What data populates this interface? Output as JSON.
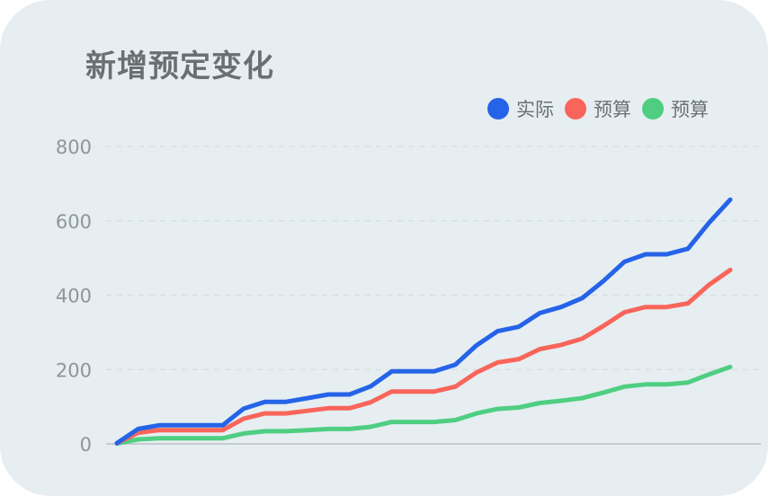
{
  "chart_data": {
    "type": "line",
    "title": "新增预定变化",
    "xlabel": "",
    "ylabel": "",
    "ylim": [
      0,
      800
    ],
    "yticks": [
      0,
      200,
      400,
      600,
      800
    ],
    "grid": true,
    "legend_position": "top-right",
    "x": [
      1,
      2,
      3,
      4,
      5,
      6,
      7,
      8,
      9,
      10,
      11,
      12,
      13,
      14,
      15,
      16,
      17,
      18,
      19,
      20,
      21,
      22,
      23,
      24,
      25,
      26,
      27,
      28,
      29,
      30
    ],
    "series": [
      {
        "name": "实际",
        "color": "#2563e8",
        "values": [
          2,
          40,
          50,
          50,
          50,
          50,
          95,
          113,
          113,
          123,
          133,
          133,
          155,
          195,
          195,
          195,
          213,
          265,
          303,
          315,
          352,
          368,
          392,
          438,
          490,
          510,
          510,
          525,
          595,
          657
        ]
      },
      {
        "name": "预算",
        "color": "#f9655a",
        "values": [
          2,
          30,
          37,
          37,
          37,
          37,
          68,
          82,
          82,
          89,
          96,
          96,
          112,
          141,
          141,
          141,
          154,
          192,
          219,
          228,
          255,
          266,
          283,
          317,
          354,
          368,
          368,
          378,
          428,
          468
        ]
      },
      {
        "name": "预算",
        "color": "#4fce82",
        "values": [
          1,
          12,
          15,
          15,
          15,
          15,
          28,
          34,
          34,
          37,
          40,
          40,
          46,
          59,
          59,
          59,
          64,
          82,
          94,
          98,
          110,
          116,
          123,
          138,
          154,
          160,
          160,
          165,
          187,
          207
        ]
      }
    ]
  }
}
